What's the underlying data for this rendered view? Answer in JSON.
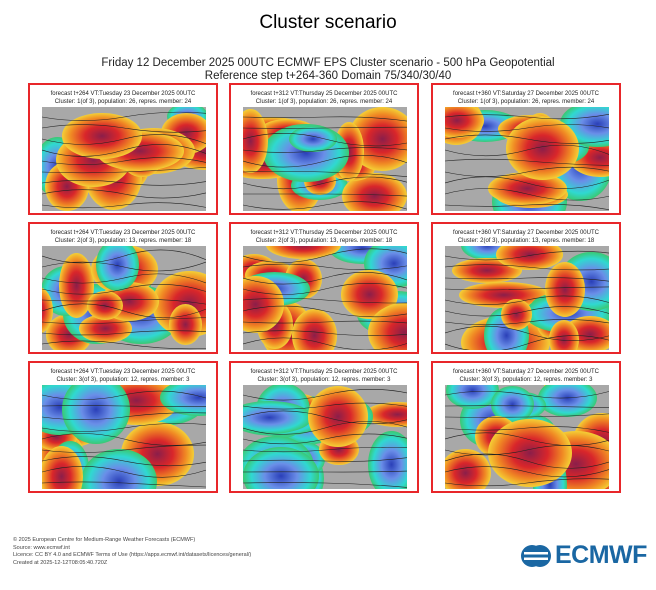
{
  "header": {
    "title": "Cluster scenario",
    "line1": "Friday 12 December 2025 00UTC ECMWF EPS Cluster scenario - 500 hPa Geopotential",
    "line2": "Reference step t+264-360 Domain 75/340/30/40"
  },
  "chart_data": {
    "type": "heatmap",
    "title": "Cluster scenario",
    "variable": "500 hPa Geopotential anomaly",
    "panels": [
      {
        "forecast": "forecast t+264 VT:Tuesday 23 December 2025 00UTC",
        "cluster": "Cluster: 1(of 3), population: 26, repres. member: 24"
      },
      {
        "forecast": "forecast t+312 VT:Thursday 25 December 2025 00UTC",
        "cluster": "Cluster: 1(of 3), population: 26, repres. member: 24"
      },
      {
        "forecast": "forecast t+360 VT:Saturday 27 December 2025 00UTC",
        "cluster": "Cluster: 1(of 3), population: 26, repres. member: 24"
      },
      {
        "forecast": "forecast t+264 VT:Tuesday 23 December 2025 00UTC",
        "cluster": "Cluster: 2(of 3), population: 13, repres. member: 18"
      },
      {
        "forecast": "forecast t+312 VT:Thursday 25 December 2025 00UTC",
        "cluster": "Cluster: 2(of 3), population: 13, repres. member: 18"
      },
      {
        "forecast": "forecast t+360 VT:Saturday 27 December 2025 00UTC",
        "cluster": "Cluster: 2(of 3), population: 13, repres. member: 18"
      },
      {
        "forecast": "forecast t+264 VT:Tuesday 23 December 2025 00UTC",
        "cluster": "Cluster: 3(of 3), population: 12, repres. member: 3"
      },
      {
        "forecast": "forecast t+312 VT:Thursday 25 December 2025 00UTC",
        "cluster": "Cluster: 3(of 3), population: 12, repres. member: 3"
      },
      {
        "forecast": "forecast t+360 VT:Saturday 27 December 2025 00UTC",
        "cluster": "Cluster: 3(of 3), population: 12, repres. member: 3"
      }
    ]
  },
  "footer": {
    "l1": "© 2025 European Centre for Medium-Range Weather Forecasts (ECMWF)",
    "l2": "Source: www.ecmwf.int",
    "l3": "Licence: CC BY 4.0 and ECMWF Terms of Use (https://apps.ecmwf.int/datasets/licences/general/)",
    "l4": "Created at 2025-12-12T08:05:40.720Z",
    "logo": "ECMWF"
  },
  "colors": {
    "border": "#e8262a",
    "brand": "#1a67a3"
  }
}
